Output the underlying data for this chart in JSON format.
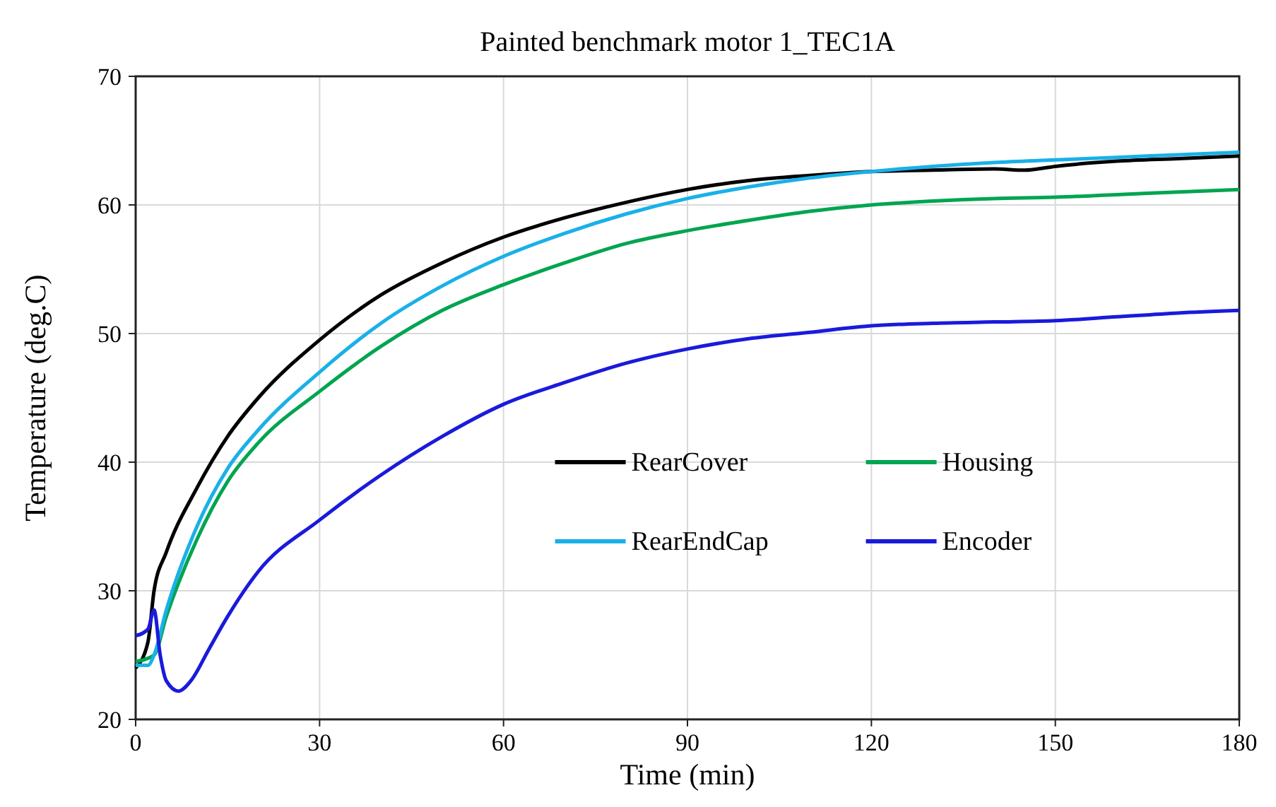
{
  "chart_data": {
    "type": "line",
    "title": "Painted benchmark motor 1_TEC1A",
    "xlabel": "Time (min)",
    "ylabel": "Temperature (deg.C)",
    "xlim": [
      0,
      180
    ],
    "xticks": [
      0,
      30,
      60,
      90,
      120,
      150,
      180
    ],
    "ylim": [
      20,
      70
    ],
    "yticks": [
      20,
      30,
      40,
      50,
      60,
      70
    ],
    "grid": true,
    "legend": "center right",
    "series": [
      {
        "name": "RearCover",
        "color": "#000000",
        "x": [
          0,
          2,
          3,
          5,
          10,
          15,
          20,
          30,
          40,
          50,
          60,
          70,
          80,
          90,
          100,
          110,
          120,
          130,
          140,
          145,
          150,
          160,
          170,
          180
        ],
        "values": [
          24,
          26,
          30,
          33,
          38,
          42,
          45,
          49.5,
          53,
          55.5,
          57.5,
          59,
          60.2,
          61.2,
          61.9,
          62.3,
          62.6,
          62.7,
          62.8,
          62.7,
          63,
          63.4,
          63.6,
          63.8
        ]
      },
      {
        "name": "Housing",
        "color": "#00a550",
        "x": [
          0,
          3,
          5,
          10,
          15,
          20,
          30,
          40,
          50,
          60,
          70,
          80,
          90,
          100,
          110,
          120,
          130,
          140,
          150,
          160,
          170,
          180
        ],
        "values": [
          24.5,
          25,
          28,
          34,
          38.5,
          41.5,
          45.5,
          49,
          51.8,
          53.8,
          55.5,
          57,
          58,
          58.8,
          59.5,
          60,
          60.3,
          60.5,
          60.6,
          60.8,
          61,
          61.2
        ]
      },
      {
        "name": "RearEndCap",
        "color": "#1ab0e8",
        "x": [
          0,
          2,
          3,
          5,
          10,
          15,
          20,
          30,
          40,
          50,
          60,
          70,
          80,
          90,
          100,
          110,
          120,
          130,
          140,
          150,
          160,
          170,
          180
        ],
        "values": [
          24.2,
          24.2,
          25,
          28.5,
          35,
          39.5,
          42.5,
          47,
          50.8,
          53.7,
          56,
          57.8,
          59.3,
          60.5,
          61.4,
          62.1,
          62.6,
          63,
          63.3,
          63.5,
          63.7,
          63.9,
          64.1
        ]
      },
      {
        "name": "Encoder",
        "color": "#1a1adc",
        "x": [
          0,
          2,
          3,
          4,
          5,
          7,
          9,
          12,
          15,
          20,
          30,
          40,
          50,
          60,
          70,
          80,
          90,
          100,
          110,
          120,
          130,
          140,
          150,
          160,
          170,
          180
        ],
        "values": [
          26.5,
          27,
          28.5,
          25,
          23,
          22.2,
          23,
          25.5,
          28,
          31.5,
          35.5,
          39,
          42,
          44.5,
          46.2,
          47.7,
          48.8,
          49.6,
          50.1,
          50.6,
          50.8,
          50.9,
          51,
          51.3,
          51.6,
          51.8
        ]
      }
    ]
  }
}
